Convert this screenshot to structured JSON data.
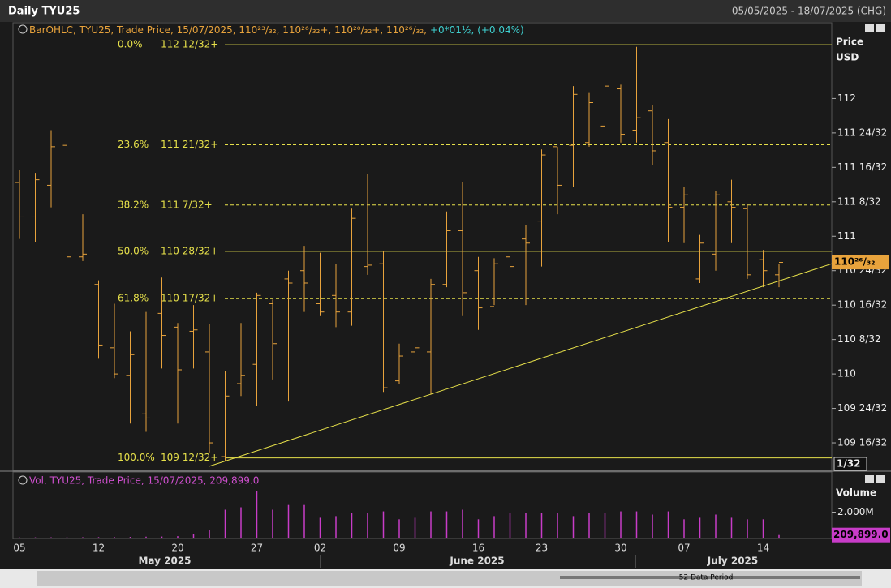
{
  "header": {
    "title": "Daily TYU25",
    "range": "05/05/2025 - 18/07/2025 (CHG)"
  },
  "chart_data": [
    {
      "type": "ohlc",
      "legend": {
        "text": "BarOHLC, TYU25, Trade Price, 15/07/2025, 110²³/₃₂, 110²⁶/₃₂+, 110²⁰/₃₂+, 110²⁶/₃₂,",
        "change": "+0*01½, (+0.04%)"
      },
      "y_label": "Price",
      "y_unit": "USD",
      "categories": [
        "05",
        null,
        null,
        null,
        null,
        "12",
        null,
        null,
        null,
        null,
        "20",
        null,
        null,
        null,
        null,
        "27",
        null,
        null,
        null,
        "02",
        null,
        null,
        null,
        null,
        "09",
        null,
        null,
        null,
        null,
        "16",
        null,
        null,
        null,
        "23",
        null,
        null,
        null,
        null,
        "30",
        null,
        null,
        null,
        "07",
        null,
        null,
        null,
        null,
        "14",
        null
      ],
      "month_labels": [
        "May 2025",
        "June 2025",
        "July 2025"
      ],
      "color": "#e8a33c",
      "open": [
        111.39,
        111.14,
        111.37,
        111.66,
        110.85,
        110.65,
        110.19,
        109.99,
        109.71,
        110.44,
        110.34,
        110.31,
        110.16,
        109.4,
        109.93,
        110.07,
        110.51,
        110.69,
        110.75,
        110.51,
        110.57,
        110.45,
        110.78,
        110.8,
        109.95,
        110.16,
        110.16,
        110.65,
        111.04,
        110.75,
        110.49,
        110.85,
        110.98,
        111.11,
        111.65,
        111.66,
        111.68,
        111.8,
        112.07,
        111.77,
        111.91,
        111.68,
        111.21,
        110.69,
        110.87,
        111.25,
        111.2,
        110.83,
        110.72
      ],
      "high": [
        111.48,
        111.46,
        111.77,
        111.67,
        111.16,
        110.68,
        110.51,
        110.31,
        110.45,
        110.7,
        110.37,
        110.5,
        110.36,
        110.02,
        110.37,
        110.59,
        110.54,
        110.75,
        110.93,
        110.88,
        110.8,
        111.2,
        111.45,
        110.89,
        110.22,
        110.43,
        110.69,
        111.18,
        111.39,
        110.85,
        110.84,
        111.23,
        111.08,
        111.63,
        111.65,
        112.09,
        112.04,
        112.15,
        112.1,
        112.375,
        111.95,
        111.85,
        111.36,
        111.01,
        111.33,
        111.41,
        111.23,
        110.9,
        110.8
      ],
      "low": [
        110.98,
        110.96,
        111.21,
        110.78,
        110.82,
        110.11,
        109.97,
        109.64,
        109.58,
        110.04,
        109.64,
        110.04,
        109.43,
        109.37,
        109.84,
        109.77,
        109.96,
        109.8,
        110.45,
        110.42,
        110.34,
        110.35,
        110.72,
        109.87,
        109.93,
        110.02,
        109.85,
        110.63,
        110.42,
        110.32,
        110.5,
        110.72,
        110.5,
        110.78,
        111.16,
        111.36,
        111.65,
        111.71,
        111.68,
        111.68,
        111.52,
        110.96,
        110.95,
        110.66,
        110.75,
        110.95,
        110.69,
        110.63,
        110.63
      ],
      "close": [
        111.14,
        111.41,
        111.65,
        110.85,
        110.87,
        110.21,
        110.0,
        110.14,
        109.68,
        110.28,
        110.03,
        110.32,
        109.5,
        109.84,
        109.99,
        110.57,
        110.22,
        110.66,
        110.66,
        110.45,
        110.45,
        111.13,
        110.79,
        109.9,
        110.13,
        110.19,
        110.65,
        111.04,
        110.59,
        110.48,
        110.8,
        110.78,
        110.95,
        111.59,
        111.37,
        112.03,
        111.97,
        112.09,
        111.74,
        111.86,
        111.62,
        111.21,
        111.3,
        110.95,
        111.3,
        111.21,
        110.72,
        110.75,
        110.81
      ],
      "ylim": [
        109.3,
        112.55
      ],
      "yticks": [
        112,
        {
          "value": 111.75,
          "label": "111 24/32"
        },
        {
          "value": 111.5,
          "label": "111 16/32"
        },
        {
          "value": 111.25,
          "label": "111 8/32"
        },
        111,
        {
          "value": 110.75,
          "label": "110 24/32"
        },
        {
          "value": 110.5,
          "label": "110 16/32"
        },
        {
          "value": 110.25,
          "label": "110 8/32"
        },
        110,
        {
          "value": 109.75,
          "label": "109 24/32"
        },
        {
          "value": 109.5,
          "label": "109 16/32"
        }
      ],
      "last": {
        "value": 110.8125,
        "label": "110²⁶/₃₂"
      },
      "tick_size": "1/32",
      "fib_levels": [
        {
          "percent": "0.0%",
          "label": "112 12/32+",
          "value": 112.390625,
          "dashed": false
        },
        {
          "percent": "23.6%",
          "label": "111 21/32+",
          "value": 111.6640625,
          "dashed": true
        },
        {
          "percent": "38.2%",
          "label": "111 7/32+",
          "value": 111.2265625,
          "dashed": true
        },
        {
          "percent": "50.0%",
          "label": "110 28/32+",
          "value": 110.890625,
          "dashed": false
        },
        {
          "percent": "61.8%",
          "label": "110 17/32+",
          "value": 110.546875,
          "dashed": true
        },
        {
          "percent": "100.0%",
          "label": "109 12/32+",
          "value": 109.390625,
          "dashed": false
        }
      ],
      "fib_color": "#e6e04a",
      "trendline": {
        "x": [
          12,
          51.6
        ],
        "values": [
          109.33,
          110.81
        ]
      }
    },
    {
      "type": "bar",
      "legend": "Vol, TYU25, Trade Price, 15/07/2025, 209,899.0",
      "y_label": "Volume",
      "color": "#c83cc8",
      "values": [
        20000,
        25000,
        30000,
        30000,
        35000,
        40000,
        50000,
        60000,
        80000,
        90000,
        120000,
        300000,
        600000,
        2190000,
        2380000,
        3630000,
        2190000,
        2560000,
        2560000,
        1560000,
        1690000,
        1940000,
        1940000,
        2060000,
        1440000,
        1560000,
        2060000,
        2060000,
        2190000,
        1440000,
        1690000,
        1940000,
        1940000,
        1940000,
        1940000,
        1690000,
        1940000,
        1940000,
        2060000,
        2060000,
        1810000,
        2060000,
        1440000,
        1560000,
        1810000,
        1560000,
        1440000,
        1440000,
        209899
      ],
      "ylim": [
        0,
        4000000
      ],
      "yticks": [
        {
          "value": 2000000,
          "label": "2.000M"
        }
      ],
      "last": {
        "value": 209899,
        "label": "209,899.0"
      }
    }
  ],
  "footer": {
    "period": "52 Data Period"
  }
}
